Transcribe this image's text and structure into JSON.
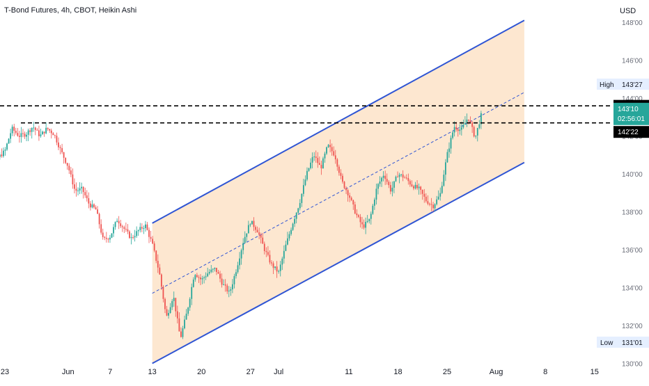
{
  "chart_data": {
    "type": "candlestick",
    "title": "T-Bond Futures, 4h, CBOT, Heikin Ashi",
    "currency": "USD",
    "y_axis": {
      "ticks": [
        "148'00",
        "146'00",
        "144'00",
        "142'00",
        "140'00",
        "138'00",
        "136'00",
        "134'00",
        "132'00",
        "130'00"
      ],
      "tick_values": [
        148,
        146,
        144,
        142,
        140,
        138,
        136,
        134,
        132,
        130
      ],
      "ylim": [
        129.9,
        149.2
      ]
    },
    "x_axis": {
      "ticks": [
        "23",
        "Jun",
        "7",
        "13",
        "20",
        "27",
        "Jul",
        "11",
        "18",
        "25",
        "Aug",
        "8",
        "15"
      ],
      "tick_dates": [
        "2022-05-23",
        "2022-06-01",
        "2022-06-07",
        "2022-06-13",
        "2022-06-20",
        "2022-06-27",
        "2022-07-01",
        "2022-07-11",
        "2022-07-18",
        "2022-07-25",
        "2022-08-01",
        "2022-08-08",
        "2022-08-15"
      ]
    },
    "price_labels": {
      "high_label": "High",
      "high_value": "143'27",
      "high_price": 143.84,
      "resistance": "143'19",
      "resistance_price": 143.59,
      "current": "143'10",
      "current_price": 143.31,
      "countdown": "02:56:01",
      "support": "142'22",
      "support_price": 142.69,
      "low_label": "Low",
      "low_value": "131'01",
      "low_price": 131.03
    },
    "horizontal_lines": [
      {
        "name": "resistance",
        "price": 143.59,
        "style": "dashed",
        "color": "#000000"
      },
      {
        "name": "support",
        "price": 142.69,
        "style": "dashed",
        "color": "#000000"
      }
    ],
    "channel": {
      "upper": {
        "start": [
          "2022-06-13",
          137.4
        ],
        "end": [
          "2022-08-05",
          148.1
        ]
      },
      "lower": {
        "start": [
          "2022-06-13",
          130.0
        ],
        "end": [
          "2022-08-05",
          140.6
        ]
      },
      "median": {
        "start": [
          "2022-06-13",
          133.7
        ],
        "end": [
          "2022-08-05",
          144.3
        ]
      },
      "fill": "#fde3c8",
      "line_color": "#2f55d4"
    },
    "price_path": [
      [
        "2022-05-19",
        141.7
      ],
      [
        "2022-05-20",
        141.1
      ],
      [
        "2022-05-21",
        140.5
      ],
      [
        "2022-05-23",
        141.2
      ],
      [
        "2022-05-24",
        142.4
      ],
      [
        "2022-05-25",
        142.0
      ],
      [
        "2022-05-26",
        142.1
      ],
      [
        "2022-05-27",
        142.5
      ],
      [
        "2022-05-28",
        142.0
      ],
      [
        "2022-05-29",
        142.4
      ],
      [
        "2022-05-30",
        142.1
      ],
      [
        "2022-05-31",
        141.2
      ],
      [
        "2022-06-01",
        140.4
      ],
      [
        "2022-06-02",
        139.1
      ],
      [
        "2022-06-03",
        139.2
      ],
      [
        "2022-06-04",
        138.4
      ],
      [
        "2022-06-05",
        138.1
      ],
      [
        "2022-06-06",
        136.5
      ],
      [
        "2022-06-07",
        136.7
      ],
      [
        "2022-06-08",
        137.6
      ],
      [
        "2022-06-09",
        137.1
      ],
      [
        "2022-06-10",
        136.6
      ],
      [
        "2022-06-11",
        137.0
      ],
      [
        "2022-06-12",
        137.3
      ],
      [
        "2022-06-13",
        136.3
      ],
      [
        "2022-06-14",
        134.8
      ],
      [
        "2022-06-15",
        132.4
      ],
      [
        "2022-06-16",
        133.6
      ],
      [
        "2022-06-17",
        131.3
      ],
      [
        "2022-06-18",
        132.8
      ],
      [
        "2022-06-19",
        134.8
      ],
      [
        "2022-06-20",
        134.4
      ],
      [
        "2022-06-21",
        134.8
      ],
      [
        "2022-06-22",
        135.0
      ],
      [
        "2022-06-23",
        134.2
      ],
      [
        "2022-06-24",
        133.7
      ],
      [
        "2022-06-25",
        135.0
      ],
      [
        "2022-06-26",
        136.5
      ],
      [
        "2022-06-27",
        137.5
      ],
      [
        "2022-06-28",
        137.0
      ],
      [
        "2022-06-29",
        136.0
      ],
      [
        "2022-06-30",
        135.2
      ],
      [
        "2022-07-01",
        134.8
      ],
      [
        "2022-07-02",
        136.2
      ],
      [
        "2022-07-03",
        137.4
      ],
      [
        "2022-07-04",
        138.5
      ],
      [
        "2022-07-05",
        140.0
      ],
      [
        "2022-07-06",
        141.0
      ],
      [
        "2022-07-07",
        140.3
      ],
      [
        "2022-07-08",
        141.5
      ],
      [
        "2022-07-09",
        141.0
      ],
      [
        "2022-07-10",
        139.6
      ],
      [
        "2022-07-11",
        138.9
      ],
      [
        "2022-07-12",
        137.9
      ],
      [
        "2022-07-13",
        137.2
      ],
      [
        "2022-07-14",
        137.6
      ],
      [
        "2022-07-15",
        139.3
      ],
      [
        "2022-07-16",
        140.0
      ],
      [
        "2022-07-17",
        139.1
      ],
      [
        "2022-07-18",
        140.0
      ],
      [
        "2022-07-19",
        139.8
      ],
      [
        "2022-07-20",
        139.4
      ],
      [
        "2022-07-21",
        139.2
      ],
      [
        "2022-07-22",
        138.6
      ],
      [
        "2022-07-23",
        138.3
      ],
      [
        "2022-07-24",
        138.9
      ],
      [
        "2022-07-25",
        141.0
      ],
      [
        "2022-07-26",
        142.5
      ],
      [
        "2022-07-27",
        142.3
      ],
      [
        "2022-07-28",
        143.0
      ],
      [
        "2022-07-29",
        141.9
      ],
      [
        "2022-07-30",
        143.3
      ]
    ],
    "colors": {
      "up": "#26a69a",
      "down": "#ef5350",
      "current_badge": "#26a69a",
      "line_badge": "#000000",
      "label_bg": "#e5efff"
    }
  }
}
